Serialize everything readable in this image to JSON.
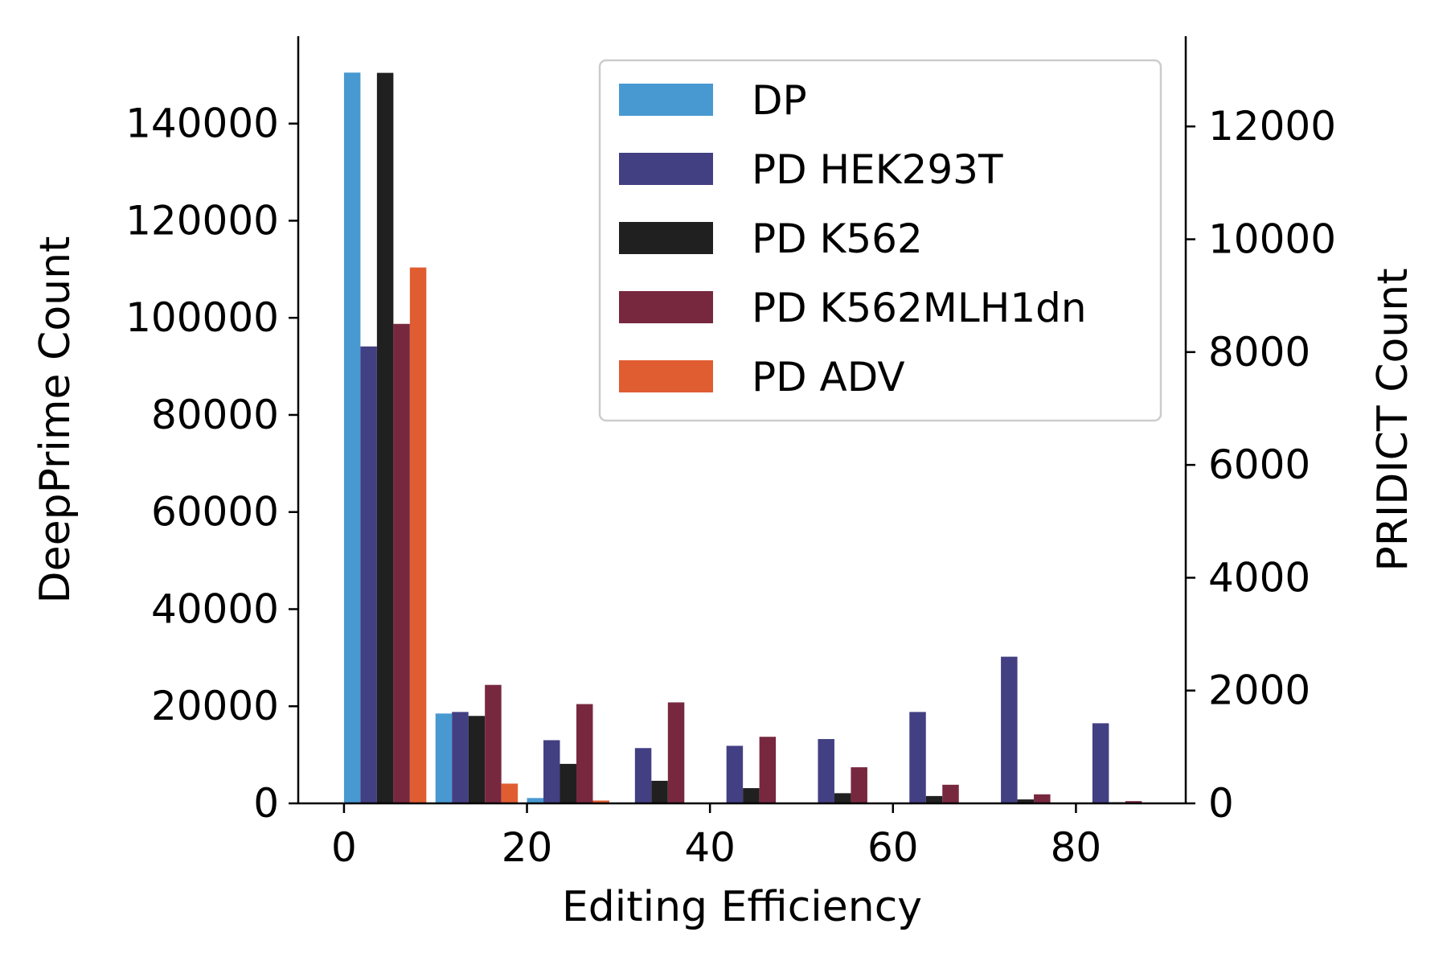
{
  "chart_data": {
    "type": "bar",
    "x_bin_starts": [
      0,
      10,
      20,
      30,
      40,
      50,
      60,
      70,
      80
    ],
    "xlabel": "Editing Efficiency",
    "ylabel_left": "DeepPrime Count",
    "ylabel_right": "PRIDICT Count",
    "xlim": [
      -5,
      92
    ],
    "ylim_left": [
      0,
      158000
    ],
    "ylim_right": [
      0,
      13600
    ],
    "x_ticks": [
      0,
      20,
      40,
      60,
      80
    ],
    "y_ticks_left": [
      0,
      20000,
      40000,
      60000,
      80000,
      100000,
      120000,
      140000
    ],
    "y_ticks_right": [
      0,
      2000,
      4000,
      6000,
      8000,
      10000,
      12000
    ],
    "grid": false,
    "legend_position": "top-right",
    "series": [
      {
        "name": "DP",
        "axis": "left",
        "color": "#4899d1",
        "values": [
          150500,
          18500,
          1100,
          0,
          0,
          0,
          0,
          0,
          0
        ]
      },
      {
        "name": "PD HEK293T",
        "axis": "right",
        "color": "#433f83",
        "values": [
          8100,
          1620,
          1120,
          980,
          1020,
          1140,
          1620,
          2600,
          1420
        ]
      },
      {
        "name": "PD K562",
        "axis": "right",
        "color": "#202020",
        "values": [
          12950,
          1550,
          700,
          400,
          270,
          180,
          130,
          70,
          20
        ]
      },
      {
        "name": "PD K562MLH1dn",
        "axis": "right",
        "color": "#77283f",
        "values": [
          8500,
          2100,
          1760,
          1790,
          1180,
          640,
          330,
          160,
          40
        ]
      },
      {
        "name": "PD ADV",
        "axis": "right",
        "color": "#e05d32",
        "values": [
          9500,
          350,
          50,
          0,
          0,
          0,
          0,
          0,
          0
        ]
      }
    ]
  }
}
